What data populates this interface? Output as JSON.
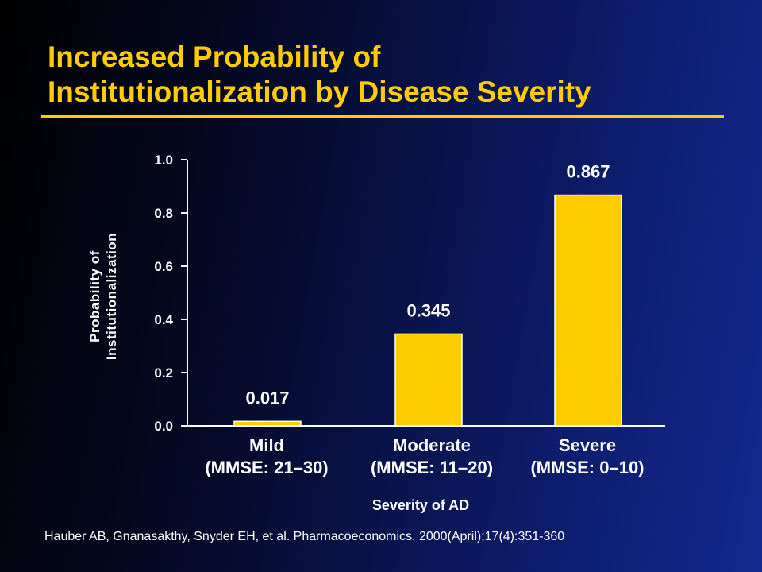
{
  "title_line1": "Increased Probability of",
  "title_line2": "Institutionalization by Disease Severity",
  "colors": {
    "title": "#ffcc00",
    "bar": "#ffcc00",
    "bar_edge": "#ffffff",
    "text": "#ffffff"
  },
  "chart_data": {
    "type": "bar",
    "categories": [
      {
        "name": "Mild",
        "sub": "(MMSE: 21–30)"
      },
      {
        "name": "Moderate",
        "sub": "(MMSE: 11–20)"
      },
      {
        "name": "Severe",
        "sub": "(MMSE: 0–10)"
      }
    ],
    "values": [
      0.017,
      0.345,
      0.867
    ],
    "value_labels": [
      "0.017",
      "0.345",
      "0.867"
    ],
    "ylabel_line1": "Probability of",
    "ylabel_line2": "Institutionalization",
    "xlabel": "Severity of AD",
    "ylim": [
      0.0,
      1.0
    ],
    "yticks": [
      "0.0",
      "0.2",
      "0.4",
      "0.6",
      "0.8",
      "1.0"
    ],
    "grid": false
  },
  "source": "Hauber AB, Gnanasakthy, Snyder EH, et al. Pharmacoeconomics. 2000(April);17(4):351-360"
}
